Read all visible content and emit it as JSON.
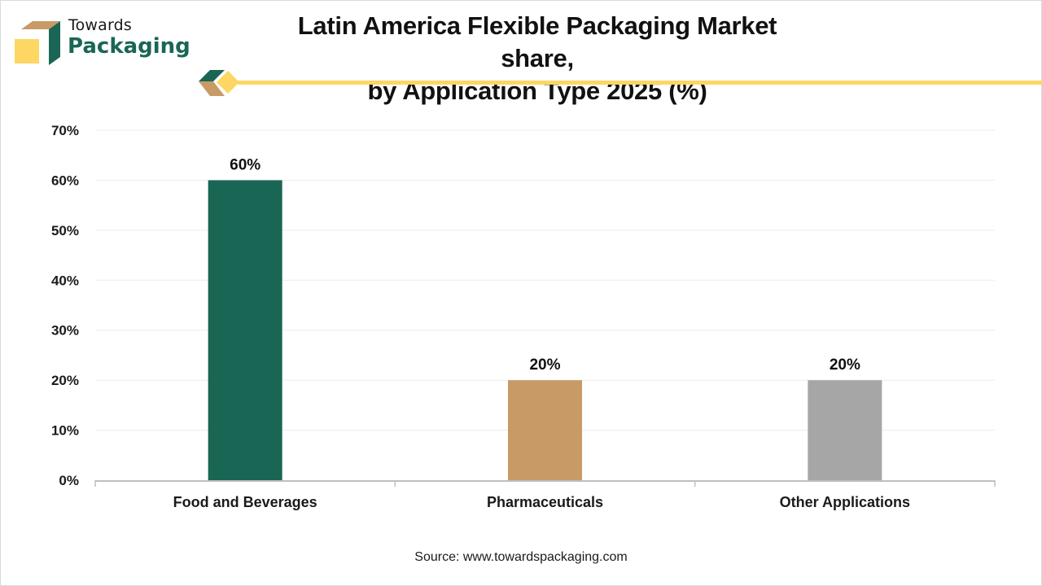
{
  "brand": {
    "name_top": "Towards",
    "name_bottom": "Packaging",
    "colors": {
      "green": "#1a6655",
      "tan": "#c89a66",
      "yellow": "#fdd663",
      "gray": "#a6a6a6"
    }
  },
  "source": "Source: www.towardspackaging.com",
  "chart_data": {
    "type": "bar",
    "title": "Latin America Flexible Packaging Market share,",
    "subtitle": "by Application Type 2025 (%)",
    "xlabel": "",
    "ylabel": "",
    "categories": [
      "Food and Beverages",
      "Pharmaceuticals",
      "Other Applications"
    ],
    "values": [
      60,
      20,
      20
    ],
    "value_labels": [
      "60%",
      "20%",
      "20%"
    ],
    "bar_colors": [
      "#1a6655",
      "#c89a66",
      "#a6a6a6"
    ],
    "ylim": [
      0,
      70
    ],
    "yticks": [
      0,
      10,
      20,
      30,
      40,
      50,
      60,
      70
    ],
    "ytick_labels": [
      "0%",
      "10%",
      "20%",
      "30%",
      "40%",
      "50%",
      "60%",
      "70%"
    ],
    "grid": true,
    "legend": "none"
  }
}
